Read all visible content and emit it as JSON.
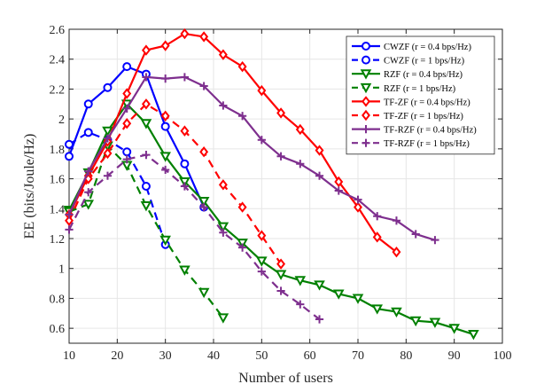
{
  "chart_data": {
    "type": "line",
    "title": "",
    "xlabel": "Number of users",
    "ylabel": "EE (bits/Joule/Hz)",
    "xlim": [
      10,
      100
    ],
    "ylim": [
      0.5,
      2.6
    ],
    "xticks": [
      10,
      20,
      30,
      40,
      50,
      60,
      70,
      80,
      90,
      100
    ],
    "yticks": [
      0.6,
      0.8,
      1,
      1.2,
      1.4,
      1.6,
      1.8,
      2,
      2.2,
      2.4,
      2.6
    ],
    "grid": true,
    "legend_position": "top-right",
    "series": [
      {
        "name": "CWZF (r = 0.4 bps/Hz)",
        "color": "#0000ff",
        "dash": "solid",
        "marker": "circle",
        "x": [
          10,
          14,
          18,
          22,
          26,
          30,
          34,
          38
        ],
        "y": [
          1.75,
          2.1,
          2.21,
          2.35,
          2.3,
          1.95,
          1.7,
          1.41
        ]
      },
      {
        "name": "CWZF (r = 1 bps/Hz)",
        "color": "#0000ff",
        "dash": "dashed",
        "marker": "circle",
        "x": [
          10,
          14,
          18,
          22,
          26,
          30
        ],
        "y": [
          1.83,
          1.91,
          1.86,
          1.78,
          1.55,
          1.16
        ]
      },
      {
        "name": "RZF (r = 0.4 bps/Hz)",
        "color": "#008000",
        "dash": "solid",
        "marker": "triangle-down",
        "x": [
          10,
          14,
          18,
          22,
          26,
          30,
          34,
          38,
          42,
          46,
          50,
          54,
          58,
          62,
          66,
          70,
          74,
          78,
          82,
          86,
          90,
          94
        ],
        "y": [
          1.39,
          1.64,
          1.92,
          2.1,
          1.97,
          1.75,
          1.58,
          1.45,
          1.28,
          1.17,
          1.05,
          0.96,
          0.92,
          0.89,
          0.83,
          0.8,
          0.73,
          0.71,
          0.65,
          0.64,
          0.6,
          0.56
        ]
      },
      {
        "name": "RZF (r = 1 bps/Hz)",
        "color": "#008000",
        "dash": "dashed",
        "marker": "triangle-down",
        "x": [
          10,
          14,
          18,
          22,
          26,
          30,
          34,
          38,
          42
        ],
        "y": [
          1.38,
          1.43,
          1.82,
          1.69,
          1.42,
          1.19,
          0.99,
          0.84,
          0.67
        ]
      },
      {
        "name": "TF-ZF (r = 0.4 bps/Hz)",
        "color": "#ff0000",
        "dash": "solid",
        "marker": "diamond",
        "x": [
          10,
          14,
          18,
          22,
          26,
          30,
          34,
          38,
          42,
          46,
          50,
          54,
          58,
          62,
          66,
          70,
          74,
          78
        ],
        "y": [
          1.36,
          1.62,
          1.85,
          2.17,
          2.46,
          2.49,
          2.57,
          2.55,
          2.43,
          2.35,
          2.19,
          2.04,
          1.93,
          1.79,
          1.58,
          1.41,
          1.21,
          1.11
        ]
      },
      {
        "name": "TF-ZF (r = 1 bps/Hz)",
        "color": "#ff0000",
        "dash": "dashed",
        "marker": "diamond",
        "x": [
          10,
          14,
          18,
          22,
          26,
          30,
          34,
          38,
          42,
          46,
          50,
          54
        ],
        "y": [
          1.32,
          1.6,
          1.77,
          1.97,
          2.1,
          2.02,
          1.92,
          1.78,
          1.56,
          1.41,
          1.22,
          1.03
        ]
      },
      {
        "name": "TF-RZF (r = 0.4 bps/Hz)",
        "color": "#7e2f8e",
        "dash": "solid",
        "marker": "plus",
        "x": [
          10,
          14,
          18,
          22,
          26,
          30,
          34,
          38,
          42,
          46,
          50,
          54,
          58,
          62,
          66,
          70,
          74,
          78,
          82,
          86
        ],
        "y": [
          1.36,
          1.65,
          1.87,
          2.07,
          2.28,
          2.27,
          2.28,
          2.22,
          2.09,
          2.02,
          1.86,
          1.75,
          1.7,
          1.62,
          1.52,
          1.46,
          1.35,
          1.32,
          1.23,
          1.19
        ]
      },
      {
        "name": "TF-RZF (r = 1 bps/Hz)",
        "color": "#7e2f8e",
        "dash": "dashed",
        "marker": "plus",
        "x": [
          10,
          14,
          18,
          22,
          26,
          30,
          34,
          38,
          42,
          46,
          50,
          54,
          58,
          62
        ],
        "y": [
          1.26,
          1.51,
          1.62,
          1.73,
          1.76,
          1.66,
          1.55,
          1.41,
          1.24,
          1.14,
          0.98,
          0.85,
          0.76,
          0.66
        ]
      }
    ]
  }
}
